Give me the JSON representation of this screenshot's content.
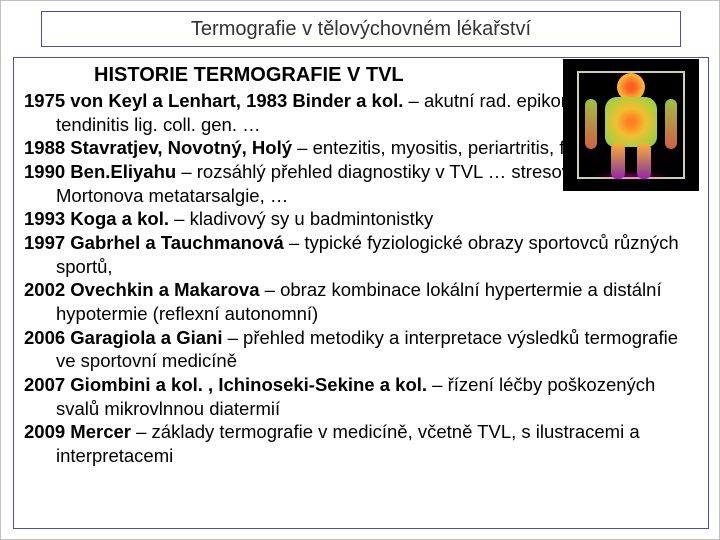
{
  "title": "Termografie v tělovýchovném lékařství",
  "subtitle": "HISTORIE TERMOGRAFIE V TVL",
  "entries": [
    {
      "year": "1975",
      "bold": "von Keyl a Lenhart, 1983 Binder a kol.",
      "rest": " – akutní rad. epikondylitis, tendinitis lig. coll. gen. …"
    },
    {
      "year": "1988",
      "bold": "Stavratjev, Novotný, Holý",
      "rest": " – entezitis, myositis, periartritis, fraktura kosti, …"
    },
    {
      "year": "1990",
      "bold": "Ben.Eliyahu",
      "rest": " – rozsáhlý přehled diagnostiky v TVL … stresová fraktura, Mortonova metatarsalgie, …"
    },
    {
      "year": "1993",
      "bold": "Koga a kol.",
      "rest": " – kladivový sy u badmintonistky"
    },
    {
      "year": "1997",
      "bold": "Gabrhel a Tauchmanová",
      "rest": " – typické fyziologické obrazy sportovců různých sportů,"
    },
    {
      "year": "2002",
      "bold": "Ovechkin a Makarova",
      "rest": " – obraz kombinace lokální hypertermie a distální hypotermie (reflexní autonomní)"
    },
    {
      "year": "2006",
      "bold": "Garagiola a Giani",
      "rest": " – přehled metodiky a interpretace výsledků termografie ve sportovní medicíně"
    },
    {
      "year": "2007",
      "bold": "Giombini a kol. , Ichinoseki-Sekine a kol.",
      "rest": " – řízení léčby poškozených svalů mikrovlnnou diatermií"
    },
    {
      "year": "2009",
      "bold": "Mercer",
      "rest": " – základy termografie v medicíně, včetně TVL, s ilustracemi a interpretacemi"
    }
  ],
  "colors": {
    "border": "#5050a0",
    "text": "#000000",
    "title_text": "#333333",
    "background": "#ffffff"
  }
}
